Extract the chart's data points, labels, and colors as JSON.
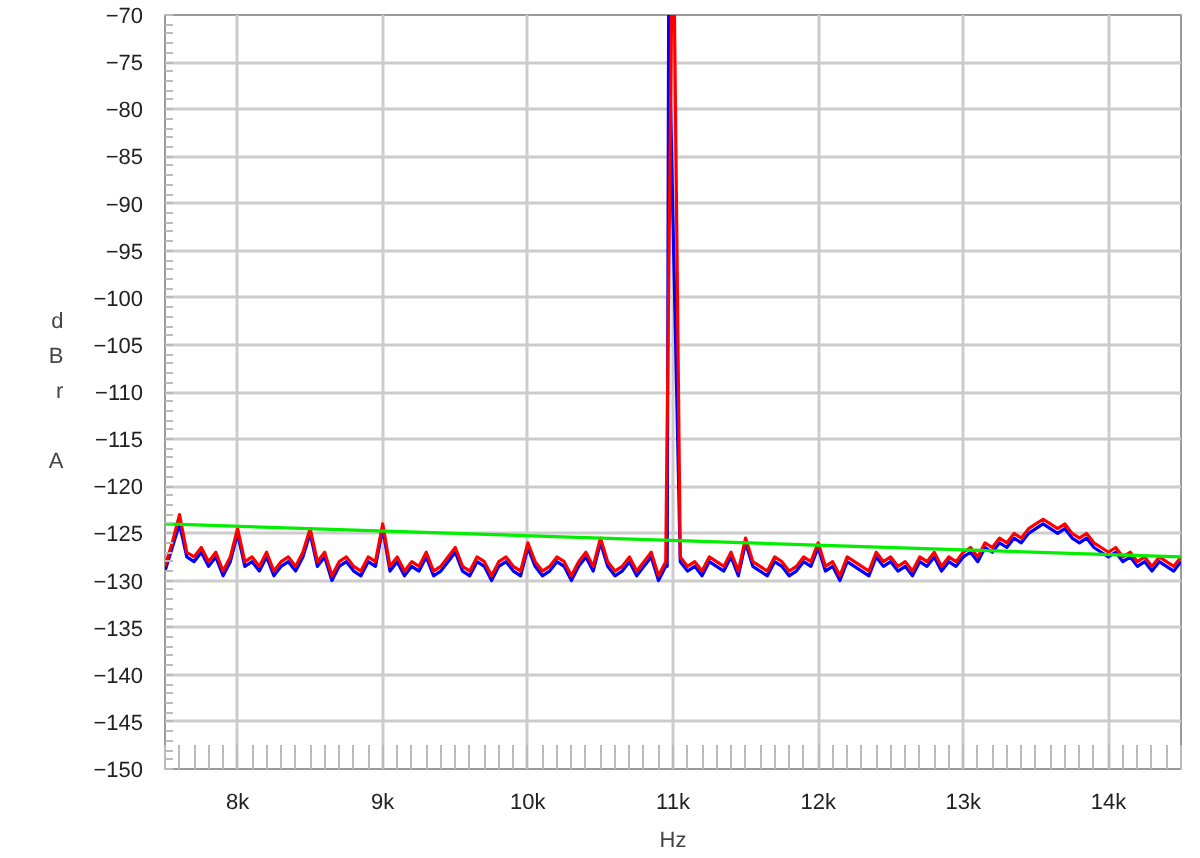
{
  "chart_data": {
    "type": "line",
    "xlabel": "Hz",
    "ylabel": "dBr A",
    "xlim": [
      7500,
      14500
    ],
    "ylim": [
      -150,
      -70
    ],
    "xticks": [
      {
        "value": 8000,
        "label": "8k"
      },
      {
        "value": 9000,
        "label": "9k"
      },
      {
        "value": 10000,
        "label": "10k"
      },
      {
        "value": 11000,
        "label": "11k"
      },
      {
        "value": 12000,
        "label": "12k"
      },
      {
        "value": 13000,
        "label": "13k"
      },
      {
        "value": 14000,
        "label": "14k"
      }
    ],
    "yticks": [
      -150,
      -145,
      -140,
      -135,
      -130,
      -125,
      -120,
      -115,
      -110,
      -105,
      -100,
      -95,
      -90,
      -85,
      -80,
      -75,
      -70
    ],
    "grid": true,
    "line_style": "solid",
    "marker": "none",
    "series": [
      {
        "color": "#0000ff",
        "x": [
          7500,
          7550,
          7600,
          7650,
          7700,
          7750,
          7800,
          7850,
          7900,
          7950,
          8000,
          8050,
          8100,
          8150,
          8200,
          8250,
          8300,
          8350,
          8400,
          8450,
          8500,
          8550,
          8600,
          8650,
          8700,
          8750,
          8800,
          8850,
          8900,
          8950,
          9000,
          9050,
          9100,
          9150,
          9200,
          9250,
          9300,
          9350,
          9400,
          9450,
          9500,
          9550,
          9600,
          9650,
          9700,
          9750,
          9800,
          9850,
          9900,
          9950,
          10000,
          10050,
          10100,
          10150,
          10200,
          10250,
          10300,
          10350,
          10400,
          10450,
          10500,
          10550,
          10600,
          10650,
          10700,
          10750,
          10800,
          10850,
          10900,
          10950,
          10960,
          10970,
          11050,
          11100,
          11150,
          11200,
          11250,
          11300,
          11350,
          11400,
          11450,
          11500,
          11550,
          11600,
          11650,
          11700,
          11750,
          11800,
          11850,
          11900,
          11950,
          12000,
          12050,
          12100,
          12150,
          12200,
          12250,
          12300,
          12350,
          12400,
          12450,
          12500,
          12550,
          12600,
          12650,
          12700,
          12750,
          12800,
          12850,
          12900,
          12950,
          13000,
          13050,
          13100,
          13150,
          13200,
          13250,
          13300,
          13350,
          13400,
          13450,
          13500,
          13550,
          13600,
          13650,
          13700,
          13750,
          13800,
          13850,
          13900,
          13950,
          14000,
          14050,
          14100,
          14150,
          14200,
          14250,
          14300,
          14350,
          14400,
          14450,
          14500
        ],
        "values": [
          -129,
          -126.5,
          -124,
          -127.5,
          -128,
          -127,
          -128.5,
          -127.5,
          -129.5,
          -128,
          -125,
          -128.5,
          -128,
          -129,
          -127.5,
          -129.5,
          -128.5,
          -128,
          -129,
          -127.5,
          -125,
          -128.5,
          -127.5,
          -130,
          -128.5,
          -128,
          -129,
          -129.5,
          -128,
          -128.5,
          -124.5,
          -129,
          -128,
          -129.5,
          -128.5,
          -129,
          -127.5,
          -129.5,
          -129,
          -128,
          -127,
          -129,
          -129.5,
          -128,
          -128.5,
          -130,
          -128.5,
          -128,
          -129,
          -129.5,
          -126.5,
          -128.5,
          -129.5,
          -129,
          -128,
          -128.5,
          -130,
          -128.5,
          -127.5,
          -129,
          -126,
          -128.5,
          -129.5,
          -129,
          -128,
          -129.5,
          -128.5,
          -127.5,
          -130,
          -128.5,
          -128.5,
          -70,
          -128,
          -129,
          -128.5,
          -129.5,
          -128,
          -128.5,
          -129,
          -127.5,
          -129.5,
          -126,
          -128.5,
          -129,
          -129.5,
          -128,
          -128.5,
          -129.5,
          -129,
          -128,
          -128.5,
          -126.5,
          -129,
          -128.5,
          -130,
          -128,
          -128.5,
          -129,
          -129.5,
          -127.5,
          -128.5,
          -128,
          -129,
          -128.5,
          -129.5,
          -128,
          -128.5,
          -127.5,
          -129,
          -128,
          -128.5,
          -127.5,
          -127,
          -128,
          -126.5,
          -127,
          -126,
          -126.5,
          -125.5,
          -126,
          -125,
          -124.5,
          -124,
          -124.5,
          -125,
          -124.5,
          -125.5,
          -126,
          -125.5,
          -126.5,
          -127,
          -127.5,
          -127,
          -128,
          -127.5,
          -128.5,
          -128,
          -129,
          -128,
          -128.5,
          -129,
          -128
        ]
      },
      {
        "color": "#ff0000",
        "x": [
          7500,
          7550,
          7600,
          7650,
          7700,
          7750,
          7800,
          7850,
          7900,
          7950,
          8000,
          8050,
          8100,
          8150,
          8200,
          8250,
          8300,
          8350,
          8400,
          8450,
          8500,
          8550,
          8600,
          8650,
          8700,
          8750,
          8800,
          8850,
          8900,
          8950,
          9000,
          9050,
          9100,
          9150,
          9200,
          9250,
          9300,
          9350,
          9400,
          9450,
          9500,
          9550,
          9600,
          9650,
          9700,
          9750,
          9800,
          9850,
          9900,
          9950,
          10000,
          10050,
          10100,
          10150,
          10200,
          10250,
          10300,
          10350,
          10400,
          10450,
          10500,
          10550,
          10600,
          10650,
          10700,
          10750,
          10800,
          10850,
          10900,
          10950,
          10990,
          11010,
          11050,
          11100,
          11150,
          11200,
          11250,
          11300,
          11350,
          11400,
          11450,
          11500,
          11550,
          11600,
          11650,
          11700,
          11750,
          11800,
          11850,
          11900,
          11950,
          12000,
          12050,
          12100,
          12150,
          12200,
          12250,
          12300,
          12350,
          12400,
          12450,
          12500,
          12550,
          12600,
          12650,
          12700,
          12750,
          12800,
          12850,
          12900,
          12950,
          13000,
          13050,
          13100,
          13150,
          13200,
          13250,
          13300,
          13350,
          13400,
          13450,
          13500,
          13550,
          13600,
          13650,
          13700,
          13750,
          13800,
          13850,
          13900,
          13950,
          14000,
          14050,
          14100,
          14150,
          14200,
          14250,
          14300,
          14350,
          14400,
          14450,
          14500
        ],
        "values": [
          -128.5,
          -126,
          -123,
          -127,
          -127.5,
          -126.5,
          -128,
          -127,
          -129,
          -127.5,
          -124.5,
          -128,
          -127.5,
          -128.5,
          -127,
          -129,
          -128,
          -127.5,
          -128.5,
          -127,
          -124.5,
          -128,
          -127,
          -129.5,
          -128,
          -127.5,
          -128.5,
          -129,
          -127.5,
          -128,
          -124,
          -128.5,
          -127.5,
          -129,
          -128,
          -128.5,
          -127,
          -129,
          -128.5,
          -127.5,
          -126.5,
          -128.5,
          -129,
          -127.5,
          -128,
          -129.5,
          -128,
          -127.5,
          -128.5,
          -129,
          -126,
          -128,
          -129,
          -128.5,
          -127.5,
          -128,
          -129.5,
          -128,
          -127,
          -128.5,
          -125.5,
          -128,
          -129,
          -128.5,
          -127.5,
          -129,
          -128,
          -127,
          -129.5,
          -128,
          -70,
          -70,
          -127.5,
          -128.5,
          -128,
          -129,
          -127.5,
          -128,
          -128.5,
          -127,
          -129,
          -125.5,
          -128,
          -128.5,
          -129,
          -127.5,
          -128,
          -129,
          -128.5,
          -127.5,
          -128,
          -126,
          -128.5,
          -128,
          -129.5,
          -127.5,
          -128,
          -128.5,
          -129,
          -127,
          -128,
          -127.5,
          -128.5,
          -128,
          -129,
          -127.5,
          -128,
          -127,
          -128.5,
          -127.5,
          -128,
          -127,
          -126.5,
          -127.5,
          -126,
          -126.5,
          -125.5,
          -126,
          -125,
          -125.5,
          -124.5,
          -124,
          -123.5,
          -124,
          -124.5,
          -124,
          -125,
          -125.5,
          -125,
          -126,
          -126.5,
          -127,
          -126.5,
          -127.5,
          -127,
          -128,
          -127.5,
          -128.5,
          -127.5,
          -128,
          -128.5,
          -127.5
        ]
      },
      {
        "color": "#00ee00",
        "x": [
          7500,
          14500
        ],
        "values": [
          -124,
          -127.5
        ]
      }
    ]
  }
}
